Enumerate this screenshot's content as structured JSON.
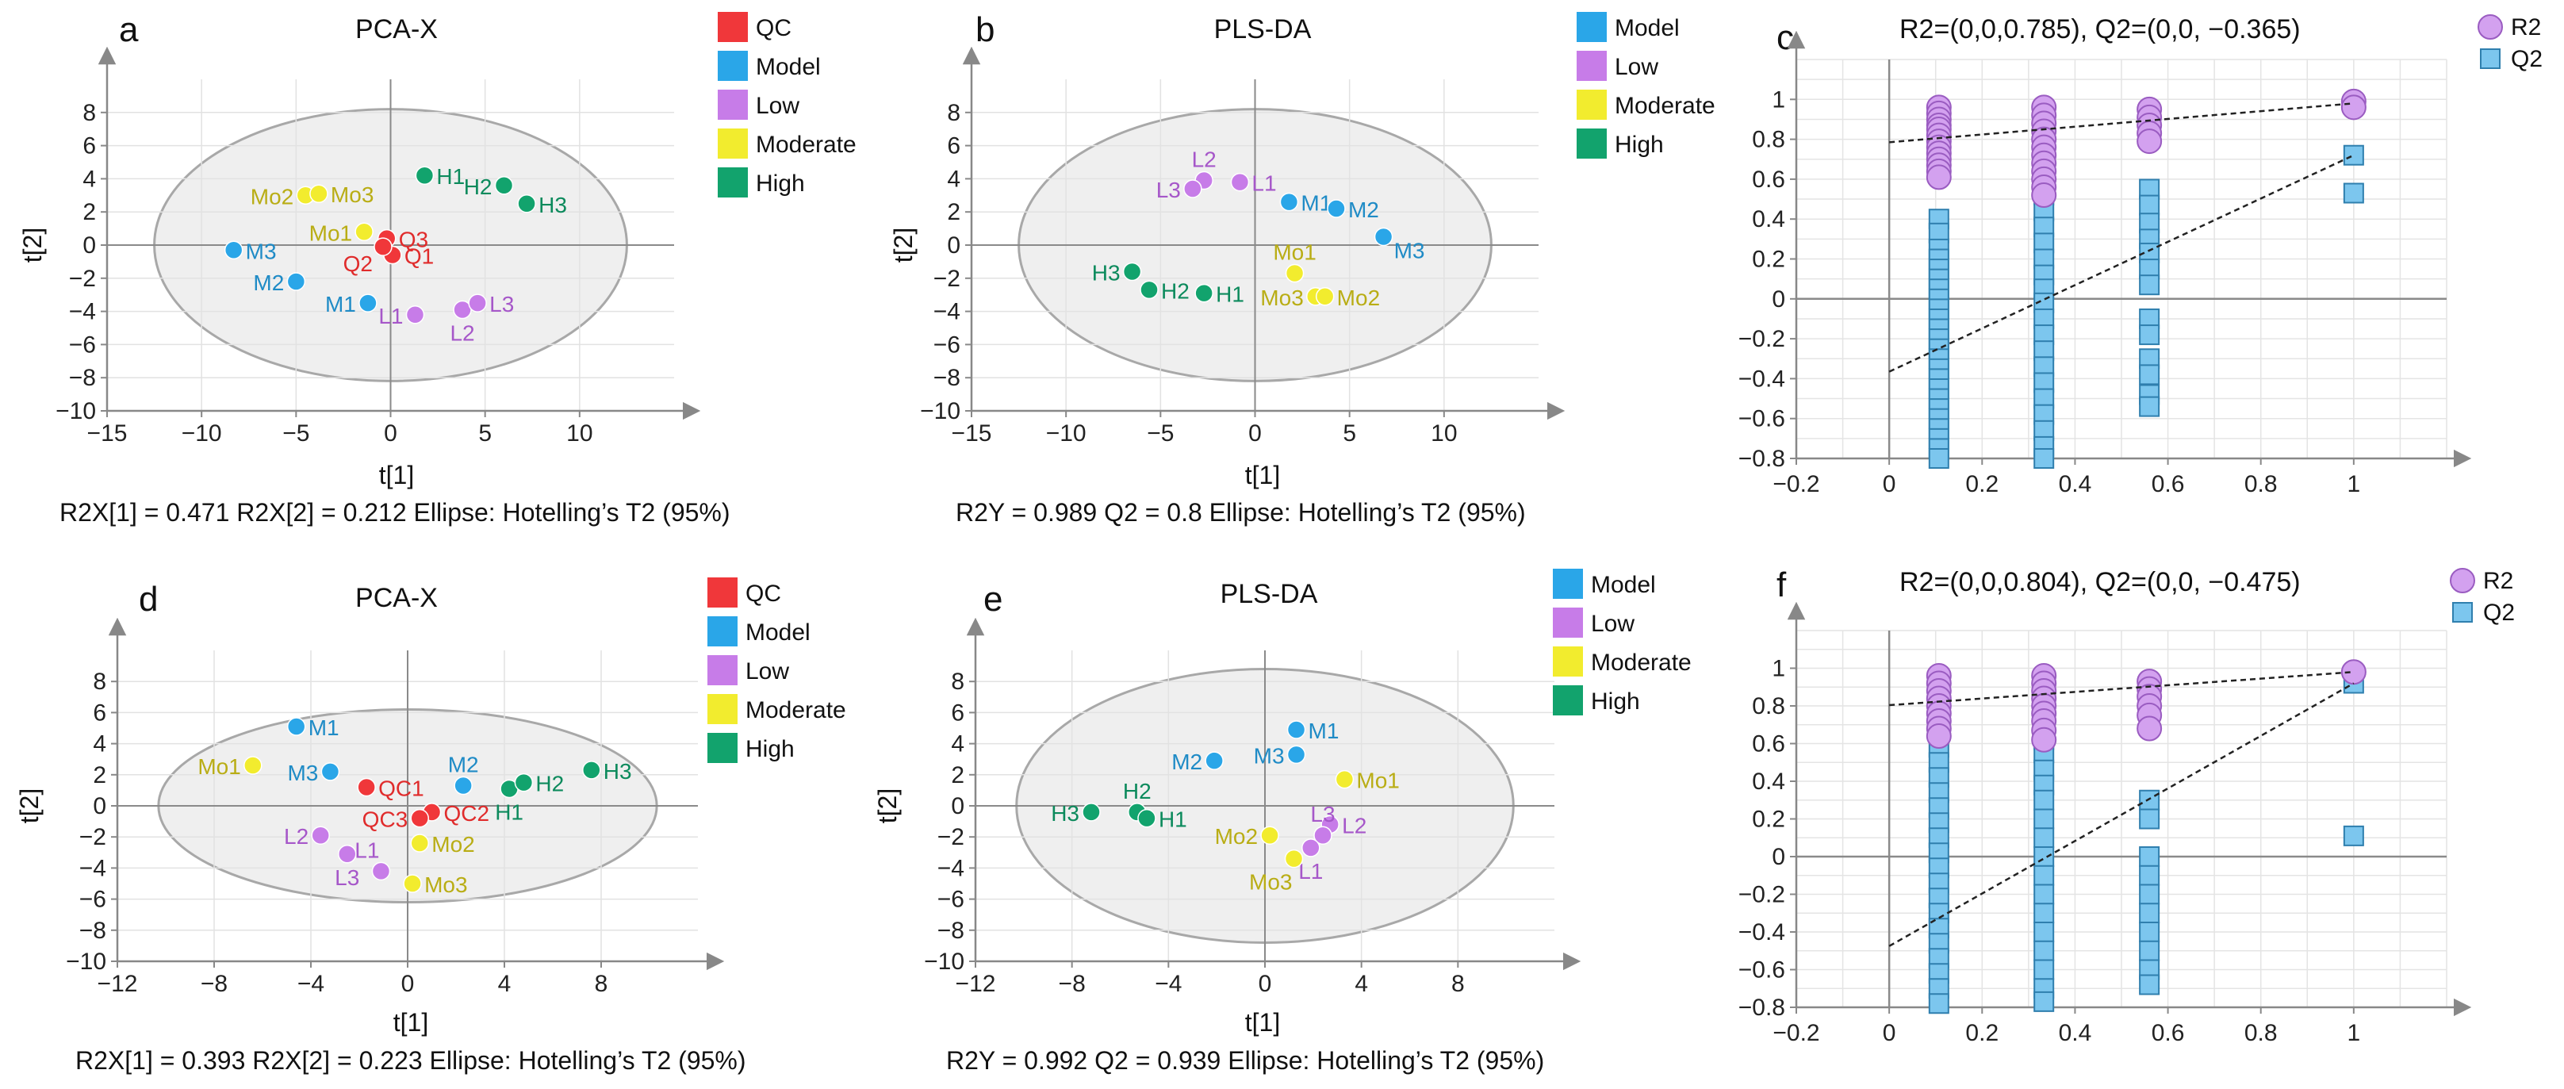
{
  "figure": {
    "panels": [
      "a",
      "b",
      "c",
      "d",
      "e",
      "f"
    ]
  },
  "colors": {
    "QC": "#f0373a",
    "Model": "#2aa6e8",
    "Low": "#c77ce8",
    "Moderate": "#f2ec2e",
    "High": "#12a36d",
    "QC_text": "#e02b2b",
    "Model_text": "#1f8bc6",
    "Low_text": "#a657c9",
    "Moderate_text": "#b9ad15",
    "High_text": "#0c8a5c",
    "R2_fill": "#d3a1ef",
    "R2_edge": "#9a5cc1",
    "Q2_fill": "#7cc6ee",
    "Q2_edge": "#2f7fae"
  },
  "chart_data": [
    {
      "panel": "a",
      "type": "scatter",
      "title": "PCA-X",
      "xlabel": "t[1]",
      "ylabel": "t[2]",
      "xlim": [
        -15,
        15
      ],
      "ylim": [
        -10,
        10
      ],
      "xticks": [
        -15,
        -10,
        -5,
        0,
        5,
        10
      ],
      "yticks": [
        -10,
        -8,
        -6,
        -4,
        -2,
        0,
        2,
        4,
        6,
        8
      ],
      "ellipse": "Hotelling's T2 (95%)",
      "ellipse_radii": [
        12.5,
        8.2
      ],
      "footer": "R2X[1] = 0.471   R2X[2] = 0.212   Ellipse: Hotelling’s T2 (95%)",
      "legend": [
        "QC",
        "Model",
        "Low",
        "Moderate",
        "High"
      ],
      "points": [
        {
          "label": "Q3",
          "group": "QC",
          "x": -0.2,
          "y": 0.4,
          "side": "r"
        },
        {
          "label": "Q1",
          "group": "QC",
          "x": 0.1,
          "y": -0.6,
          "side": "r"
        },
        {
          "label": "Q2",
          "group": "QC",
          "x": -0.4,
          "y": -0.1,
          "side": "lb"
        },
        {
          "label": "M3",
          "group": "Model",
          "x": -8.3,
          "y": -0.3,
          "side": "r"
        },
        {
          "label": "M2",
          "group": "Model",
          "x": -5.0,
          "y": -2.2,
          "side": "l"
        },
        {
          "label": "M1",
          "group": "Model",
          "x": -1.2,
          "y": -3.5,
          "side": "l"
        },
        {
          "label": "L1",
          "group": "Low",
          "x": 1.3,
          "y": -4.2,
          "side": "l"
        },
        {
          "label": "L2",
          "group": "Low",
          "x": 3.8,
          "y": -3.9,
          "side": "b"
        },
        {
          "label": "L3",
          "group": "Low",
          "x": 4.6,
          "y": -3.5,
          "side": "r"
        },
        {
          "label": "Mo2",
          "group": "Moderate",
          "x": -4.5,
          "y": 3.0,
          "side": "l"
        },
        {
          "label": "Mo3",
          "group": "Moderate",
          "x": -3.8,
          "y": 3.1,
          "side": "r"
        },
        {
          "label": "Mo1",
          "group": "Moderate",
          "x": -1.4,
          "y": 0.8,
          "side": "l"
        },
        {
          "label": "H1",
          "group": "High",
          "x": 1.8,
          "y": 4.2,
          "side": "r"
        },
        {
          "label": "H2",
          "group": "High",
          "x": 6.0,
          "y": 3.6,
          "side": "l"
        },
        {
          "label": "H3",
          "group": "High",
          "x": 7.2,
          "y": 2.5,
          "side": "r"
        }
      ]
    },
    {
      "panel": "b",
      "type": "scatter",
      "title": "PLS-DA",
      "xlabel": "t[1]",
      "ylabel": "t[2]",
      "xlim": [
        -15,
        15
      ],
      "ylim": [
        -10,
        10
      ],
      "xticks": [
        -15,
        -10,
        -5,
        0,
        5,
        10
      ],
      "yticks": [
        -10,
        -8,
        -6,
        -4,
        -2,
        0,
        2,
        4,
        6,
        8
      ],
      "ellipse": "Hotelling's T2 (95%)",
      "ellipse_radii": [
        12.5,
        8.2
      ],
      "footer": "R2Y = 0.989     Q2 = 0.8      Ellipse: Hotelling’s T2 (95%)",
      "legend": [
        "Model",
        "Low",
        "Moderate",
        "High"
      ],
      "points": [
        {
          "label": "M1",
          "group": "Model",
          "x": 1.8,
          "y": 2.6,
          "side": "r"
        },
        {
          "label": "M2",
          "group": "Model",
          "x": 4.3,
          "y": 2.2,
          "side": "r"
        },
        {
          "label": "M3",
          "group": "Model",
          "x": 6.8,
          "y": 0.5,
          "side": "rb"
        },
        {
          "label": "L2",
          "group": "Low",
          "x": -2.7,
          "y": 3.9,
          "side": "t"
        },
        {
          "label": "L3",
          "group": "Low",
          "x": -3.3,
          "y": 3.4,
          "side": "l"
        },
        {
          "label": "L1",
          "group": "Low",
          "x": -0.8,
          "y": 3.8,
          "side": "r"
        },
        {
          "label": "Mo1",
          "group": "Moderate",
          "x": 2.1,
          "y": -1.7,
          "side": "t"
        },
        {
          "label": "Mo3",
          "group": "Moderate",
          "x": 3.2,
          "y": -3.1,
          "side": "l"
        },
        {
          "label": "Mo2",
          "group": "Moderate",
          "x": 3.7,
          "y": -3.1,
          "side": "r"
        },
        {
          "label": "H3",
          "group": "High",
          "x": -6.5,
          "y": -1.6,
          "side": "l"
        },
        {
          "label": "H2",
          "group": "High",
          "x": -5.6,
          "y": -2.7,
          "side": "r"
        },
        {
          "label": "H1",
          "group": "High",
          "x": -2.7,
          "y": -2.9,
          "side": "r"
        }
      ]
    },
    {
      "panel": "c",
      "type": "scatter",
      "title": "R2=(0,0,0.785), Q2=(0,0, −0.365)",
      "xlim": [
        -0.2,
        1.2
      ],
      "ylim": [
        -0.8,
        1.2
      ],
      "xticks": [
        -0.2,
        0,
        0.2,
        0.4,
        0.6,
        0.8,
        1
      ],
      "xtick_labels": [
        "−0.2",
        "0",
        "0.2",
        "0.4",
        "0.6",
        "0.8",
        "1"
      ],
      "yticks": [
        -0.8,
        -0.6,
        -0.4,
        -0.2,
        0,
        0.2,
        0.4,
        0.6,
        0.8,
        1
      ],
      "ytick_labels": [
        "−0.8",
        "−0.6",
        "−0.4",
        "−0.2",
        "0",
        "0.2",
        "0.4",
        "0.6",
        "0.8",
        "1"
      ],
      "legend": [
        "R2",
        "Q2"
      ],
      "r2_line": {
        "intercept": 0.785,
        "end": [
          1,
          0.98
        ]
      },
      "q2_line": {
        "intercept": -0.365,
        "end": [
          1,
          0.72
        ]
      },
      "columns": [
        {
          "x": 0.107,
          "r2": [
            0.96,
            0.93,
            0.9,
            0.87,
            0.85,
            0.82,
            0.79,
            0.76,
            0.73,
            0.7,
            0.67,
            0.64,
            0.61
          ],
          "q2": [
            0.4,
            0.33,
            0.25,
            0.2,
            0.15,
            0.1,
            0.05,
            0.0,
            -0.05,
            -0.1,
            -0.15,
            -0.2,
            -0.25,
            -0.3,
            -0.35,
            -0.4,
            -0.45,
            -0.5,
            -0.55,
            -0.6,
            -0.65,
            -0.7,
            -0.75,
            -0.8
          ]
        },
        {
          "x": 0.333,
          "r2": [
            0.96,
            0.92,
            0.88,
            0.84,
            0.8,
            0.76,
            0.72,
            0.68,
            0.64,
            0.6,
            0.56,
            0.52
          ],
          "q2": [
            0.75,
            0.68,
            0.6,
            0.52,
            0.44,
            0.36,
            0.28,
            0.2,
            0.12,
            0.05,
            -0.02,
            -0.1,
            -0.18,
            -0.26,
            -0.34,
            -0.42,
            -0.5,
            -0.58,
            -0.66,
            -0.74,
            -0.8
          ]
        },
        {
          "x": 0.56,
          "r2": [
            0.95,
            0.91,
            0.87,
            0.83,
            0.79
          ],
          "q2": [
            0.55,
            0.47,
            0.38,
            0.3,
            0.23,
            0.15,
            0.07,
            -0.1,
            -0.18,
            -0.3,
            -0.38,
            -0.48,
            -0.54
          ]
        },
        {
          "x": 1.0,
          "r2": [
            0.99,
            0.96
          ],
          "q2": [
            0.72,
            0.53
          ]
        }
      ]
    },
    {
      "panel": "d",
      "type": "scatter",
      "title": "PCA-X",
      "xlabel": "t[1]",
      "ylabel": "t[2]",
      "xlim": [
        -12,
        12
      ],
      "ylim": [
        -10,
        10
      ],
      "xticks": [
        -12,
        -8,
        -4,
        0,
        4,
        8
      ],
      "xtick_labels": [
        "−12",
        "−8",
        "−4",
        "0",
        "4",
        "8"
      ],
      "yticks": [
        -10,
        -8,
        -6,
        -4,
        -2,
        0,
        2,
        4,
        6,
        8
      ],
      "ellipse": "Hotelling's T2 (95%)",
      "ellipse_radii": [
        10.3,
        6.2
      ],
      "footer": "R2X[1] = 0.393    R2X[2] = 0.223   Ellipse: Hotelling’s T2 (95%)",
      "legend": [
        "QC",
        "Model",
        "Low",
        "Moderate",
        "High"
      ],
      "points": [
        {
          "label": "QC1",
          "group": "QC",
          "x": -1.7,
          "y": 1.2,
          "side": "r"
        },
        {
          "label": "QC2",
          "group": "QC",
          "x": 1.0,
          "y": -0.4,
          "side": "r"
        },
        {
          "label": "QC3",
          "group": "QC",
          "x": 0.5,
          "y": -0.8,
          "side": "l"
        },
        {
          "label": "M1",
          "group": "Model",
          "x": -4.6,
          "y": 5.1,
          "side": "r"
        },
        {
          "label": "M3",
          "group": "Model",
          "x": -3.2,
          "y": 2.2,
          "side": "l"
        },
        {
          "label": "M2",
          "group": "Model",
          "x": 2.3,
          "y": 1.3,
          "side": "t"
        },
        {
          "label": "L2",
          "group": "Low",
          "x": -3.6,
          "y": -1.9,
          "side": "l"
        },
        {
          "label": "L1",
          "group": "Low",
          "x": -1.1,
          "y": -4.2,
          "side": "tl"
        },
        {
          "label": "L3",
          "group": "Low",
          "x": -2.5,
          "y": -3.1,
          "side": "b"
        },
        {
          "label": "Mo1",
          "group": "Moderate",
          "x": -6.4,
          "y": 2.6,
          "side": "l"
        },
        {
          "label": "Mo2",
          "group": "Moderate",
          "x": 0.5,
          "y": -2.4,
          "side": "r"
        },
        {
          "label": "Mo3",
          "group": "Moderate",
          "x": 0.2,
          "y": -5.0,
          "side": "r"
        },
        {
          "label": "H1",
          "group": "High",
          "x": 4.2,
          "y": 1.1,
          "side": "b"
        },
        {
          "label": "H2",
          "group": "High",
          "x": 4.8,
          "y": 1.5,
          "side": "r"
        },
        {
          "label": "H3",
          "group": "High",
          "x": 7.6,
          "y": 2.3,
          "side": "r"
        }
      ]
    },
    {
      "panel": "e",
      "type": "scatter",
      "title": "PLS-DA",
      "xlabel": "t[1]",
      "ylabel": "t[2]",
      "xlim": [
        -12,
        12
      ],
      "ylim": [
        -10,
        10
      ],
      "xticks": [
        -12,
        -8,
        -4,
        0,
        4,
        8
      ],
      "xtick_labels": [
        "−12",
        "−8",
        "−4",
        "0",
        "4",
        "8"
      ],
      "yticks": [
        -10,
        -8,
        -6,
        -4,
        -2,
        0,
        2,
        4,
        6,
        8
      ],
      "ellipse": "Hotelling's T2 (95%)",
      "ellipse_radii": [
        10.3,
        8.8
      ],
      "footer": "R2Y = 0.992      Q2 = 0.939      Ellipse: Hotelling’s T2 (95%)",
      "legend": [
        "Model",
        "Low",
        "Moderate",
        "High"
      ],
      "points": [
        {
          "label": "M1",
          "group": "Model",
          "x": 1.3,
          "y": 4.9,
          "side": "r"
        },
        {
          "label": "M3",
          "group": "Model",
          "x": 1.3,
          "y": 3.3,
          "side": "l"
        },
        {
          "label": "M2",
          "group": "Model",
          "x": -2.1,
          "y": 2.9,
          "side": "l"
        },
        {
          "label": "L2",
          "group": "Low",
          "x": 2.7,
          "y": -1.2,
          "side": "r"
        },
        {
          "label": "L3",
          "group": "Low",
          "x": 2.4,
          "y": -1.9,
          "side": "t"
        },
        {
          "label": "L1",
          "group": "Low",
          "x": 1.9,
          "y": -2.7,
          "side": "b"
        },
        {
          "label": "Mo1",
          "group": "Moderate",
          "x": 3.3,
          "y": 1.7,
          "side": "r"
        },
        {
          "label": "Mo2",
          "group": "Moderate",
          "x": 0.2,
          "y": -1.9,
          "side": "l"
        },
        {
          "label": "Mo3",
          "group": "Moderate",
          "x": 1.2,
          "y": -3.4,
          "side": "bl"
        },
        {
          "label": "H3",
          "group": "High",
          "x": -7.2,
          "y": -0.4,
          "side": "l"
        },
        {
          "label": "H2",
          "group": "High",
          "x": -5.3,
          "y": -0.4,
          "side": "t"
        },
        {
          "label": "H1",
          "group": "High",
          "x": -4.9,
          "y": -0.8,
          "side": "r"
        }
      ]
    },
    {
      "panel": "f",
      "type": "scatter",
      "title": "R2=(0,0,0.804), Q2=(0,0, −0.475)",
      "xlim": [
        -0.2,
        1.2
      ],
      "ylim": [
        -0.8,
        1.2
      ],
      "xticks": [
        -0.2,
        0,
        0.2,
        0.4,
        0.6,
        0.8,
        1
      ],
      "xtick_labels": [
        "−0.2",
        "0",
        "0.2",
        "0.4",
        "0.6",
        "0.8",
        "1"
      ],
      "yticks": [
        -0.8,
        -0.6,
        -0.4,
        -0.2,
        0,
        0.2,
        0.4,
        0.6,
        0.8,
        1
      ],
      "ytick_labels": [
        "−0.8",
        "−0.6",
        "−0.4",
        "−0.2",
        "0",
        "0.2",
        "0.4",
        "0.6",
        "0.8",
        "1"
      ],
      "legend": [
        "R2",
        "Q2"
      ],
      "r2_line": {
        "intercept": 0.804,
        "end": [
          1,
          0.98
        ]
      },
      "q2_line": {
        "intercept": -0.475,
        "end": [
          1,
          0.92
        ]
      },
      "columns": [
        {
          "x": 0.107,
          "r2": [
            0.96,
            0.92,
            0.88,
            0.84,
            0.8,
            0.76,
            0.72,
            0.68,
            0.64
          ],
          "q2": [
            0.74,
            0.66,
            0.58,
            0.5,
            0.42,
            0.34,
            0.26,
            0.18,
            0.1,
            0.02,
            -0.06,
            -0.14,
            -0.22,
            -0.3,
            -0.38,
            -0.46,
            -0.54,
            -0.62,
            -0.7,
            -0.78
          ]
        },
        {
          "x": 0.333,
          "r2": [
            0.96,
            0.92,
            0.88,
            0.84,
            0.8,
            0.76,
            0.72,
            0.67,
            0.62
          ],
          "q2": [
            0.62,
            0.55,
            0.46,
            0.38,
            0.3,
            0.2,
            0.1,
            0.0,
            -0.1,
            -0.2,
            -0.3,
            -0.4,
            -0.5,
            -0.6,
            -0.7,
            -0.77
          ]
        },
        {
          "x": 0.56,
          "r2": [
            0.93,
            0.89,
            0.85,
            0.8,
            0.75,
            0.68
          ],
          "q2": [
            0.3,
            0.2,
            0.0,
            -0.1,
            -0.2,
            -0.3,
            -0.4,
            -0.5,
            -0.6,
            -0.68
          ]
        },
        {
          "x": 1.0,
          "r2": [
            0.98
          ],
          "q2": [
            0.92,
            0.11
          ]
        }
      ]
    }
  ]
}
